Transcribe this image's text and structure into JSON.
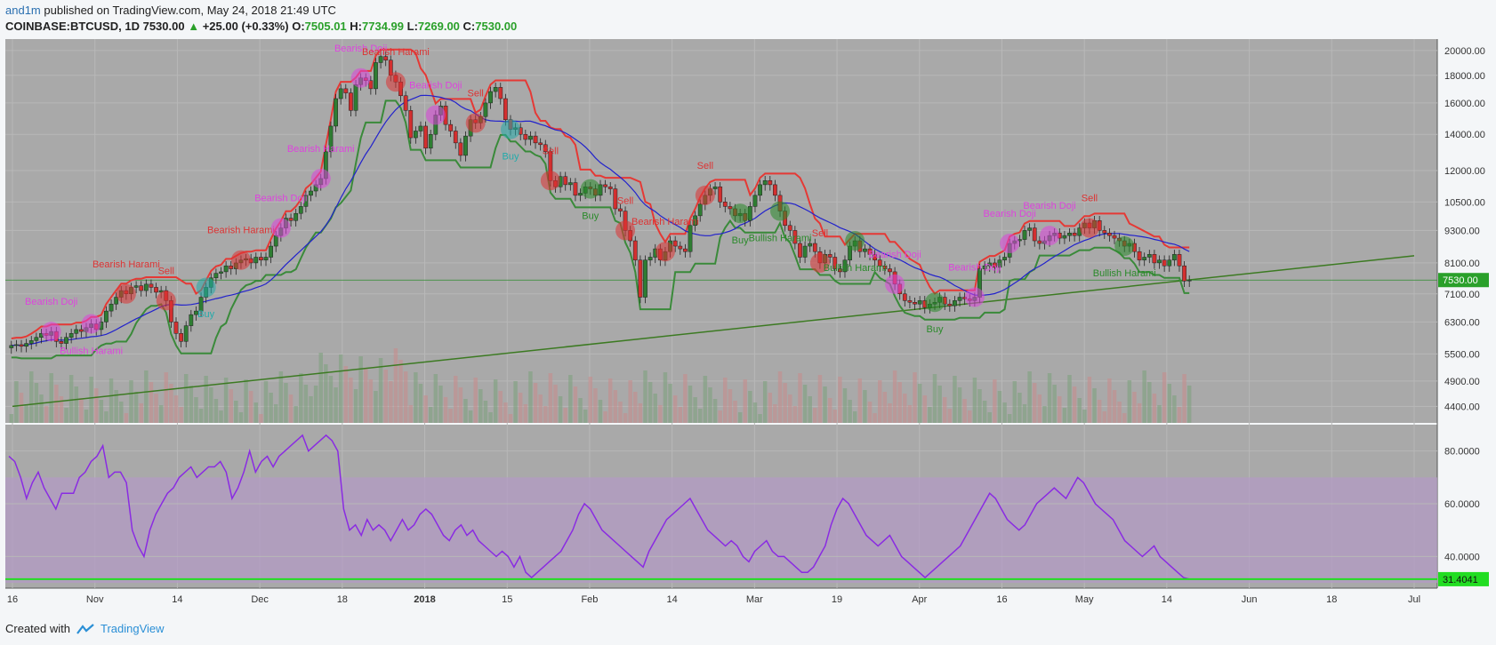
{
  "header": {
    "author": "and1m",
    "published": "published on TradingView.com, May 24, 2018 21:49 UTC",
    "symbol": "COINBASE:BTCUSD, 1D",
    "last": "7530.00",
    "change": "+25.00 (+0.33%)",
    "o_label": "O:",
    "o": "7505.01",
    "h_label": "H:",
    "h": "7734.99",
    "l_label": "L:",
    "l": "7269.00",
    "c_label": "C:",
    "c": "7530.00"
  },
  "footer": {
    "created": "Created with",
    "brand": "TradingView"
  },
  "colors": {
    "pane_bg": "#a9a9a9",
    "rsi_band": "#b39bc4",
    "up": "#2e7d32",
    "down": "#d32f2f",
    "ma": "#2222cc",
    "upper": "#e53935",
    "lower": "#3a8a3a",
    "trend": "#3c7a22",
    "rsi": "#8a2be2",
    "price_tag": "#2aa02a",
    "rsi_tag": "#22dd22"
  },
  "chart_data": [
    {
      "type": "candlestick",
      "title": "COINBASE:BTCUSD, 1D",
      "x_ticks": [
        "16",
        "Nov",
        "14",
        "Dec",
        "18",
        "2018",
        "15",
        "Feb",
        "14",
        "Mar",
        "19",
        "Apr",
        "16",
        "May",
        "14",
        "Jun",
        "18",
        "Jul"
      ],
      "y_ticks": [
        "20000.00",
        "18000.00",
        "16000.00",
        "14000.00",
        "12000.00",
        "10500.00",
        "9300.00",
        "8100.00",
        "7100.00",
        "6300.00",
        "5500.00",
        "4900.00",
        "4400.00"
      ],
      "y_scale": "log",
      "y_range": [
        4100,
        21000
      ],
      "last_price_tag": "7530.00",
      "closes": [
        5700,
        5720,
        5680,
        5750,
        5820,
        5900,
        6000,
        5950,
        6050,
        5800,
        5750,
        5900,
        6000,
        6100,
        6050,
        6150,
        6250,
        6100,
        6300,
        6600,
        6800,
        7000,
        7200,
        7100,
        7300,
        7350,
        7200,
        7400,
        7300,
        7150,
        7200,
        6900,
        6300,
        6000,
        5800,
        6200,
        6500,
        6600,
        7000,
        7300,
        7600,
        7750,
        7800,
        8000,
        7900,
        8100,
        8200,
        8250,
        8100,
        8300,
        8200,
        8300,
        8700,
        9100,
        9400,
        9800,
        9700,
        10000,
        10300,
        10800,
        11000,
        11300,
        11600,
        13000,
        14500,
        16300,
        17000,
        16700,
        15500,
        17300,
        17800,
        17600,
        17000,
        19000,
        19500,
        19200,
        18000,
        17500,
        16500,
        15500,
        13800,
        14200,
        14500,
        13200,
        14000,
        15200,
        15800,
        14600,
        14200,
        13500,
        12800,
        13900,
        14900,
        14700,
        15100,
        16000,
        16800,
        17100,
        16300,
        14900,
        14300,
        14400,
        14000,
        13700,
        13900,
        13500,
        13400,
        13000,
        11500,
        11200,
        11700,
        11300,
        11400,
        10800,
        10900,
        11200,
        11100,
        10800,
        11300,
        11200,
        11100,
        10200,
        10100,
        9300,
        8900,
        8200,
        7000,
        8200,
        8300,
        8600,
        8200,
        8500,
        8900,
        8700,
        8600,
        8500,
        9500,
        9900,
        10400,
        10800,
        11100,
        11200,
        10500,
        10300,
        10200,
        9900,
        10000,
        9700,
        10300,
        10800,
        11300,
        11500,
        11300,
        10800,
        10100,
        9500,
        9300,
        8800,
        8300,
        8700,
        8800,
        8500,
        8100,
        8400,
        8300,
        7900,
        7800,
        8200,
        8700,
        8900,
        8500,
        8600,
        8400,
        8200,
        8000,
        7900,
        7800,
        7400,
        7100,
        6900,
        6850,
        6800,
        6900,
        6700,
        6800,
        6850,
        7000,
        6800,
        6750,
        6900,
        7000,
        6950,
        6900,
        7000,
        7900,
        8000,
        8100,
        7950,
        8200,
        8300,
        8800,
        8900,
        8950,
        9300,
        9400,
        8900,
        8800,
        8900,
        9100,
        9200,
        9000,
        9100,
        9200,
        9100,
        9400,
        9600,
        9400,
        9700,
        9300,
        9200,
        9100,
        9000,
        8900,
        8700,
        8800,
        8500,
        8200,
        8300,
        8400,
        8100,
        8200,
        8000,
        8200,
        8400,
        8000,
        7500,
        7530
      ],
      "upper_band": "red stop line (resistance)",
      "lower_band": "green stop line (support)",
      "series": [
        {
          "name": "",
          "kind": "ma",
          "color": "#2222cc"
        }
      ],
      "trendline": {
        "from": [
          "16",
          4400
        ],
        "to": [
          "Jul",
          8350
        ]
      },
      "annotations": [
        {
          "text": "Bearish Doji",
          "color": "#dd44dd"
        },
        {
          "text": "Bullish Harami",
          "color": "#dd44dd"
        },
        {
          "text": "Bearish Harami",
          "color": "#d33"
        },
        {
          "text": "Sell",
          "color": "#d33"
        },
        {
          "text": "Buy",
          "color": "#2aa"
        },
        {
          "text": "Bearish Harami",
          "color": "#d33"
        },
        {
          "text": "Bearish Doji",
          "color": "#dd44dd"
        },
        {
          "text": "Bearish Harami",
          "color": "#dd44dd"
        },
        {
          "text": "Bearish Doji",
          "color": "#dd44dd"
        },
        {
          "text": "Bearish Harami",
          "color": "#d33"
        },
        {
          "text": "Bearish Doji",
          "color": "#dd44dd"
        },
        {
          "text": "Sell",
          "color": "#d33"
        },
        {
          "text": "Buy",
          "color": "#2aa"
        },
        {
          "text": "Sell",
          "color": "#d33"
        },
        {
          "text": "Buy",
          "color": "#2a8a2a"
        },
        {
          "text": "Sell",
          "color": "#d33"
        },
        {
          "text": "Bearish Harami",
          "color": "#d33"
        },
        {
          "text": "Sell",
          "color": "#d33"
        },
        {
          "text": "Buy",
          "color": "#2a8a2a"
        },
        {
          "text": "Bullish Harami",
          "color": "#2a8a2a"
        },
        {
          "text": "Sell",
          "color": "#d33"
        },
        {
          "text": "Bullish Harami",
          "color": "#2a8a2a"
        },
        {
          "text": "Bearish Doji",
          "color": "#dd44dd"
        },
        {
          "text": "Buy",
          "color": "#2a8a2a"
        },
        {
          "text": "Bearish Doji",
          "color": "#dd44dd"
        },
        {
          "text": "Bearish Doji",
          "color": "#dd44dd"
        },
        {
          "text": "Bearish Doji",
          "color": "#dd44dd"
        },
        {
          "text": "Sell",
          "color": "#d33"
        },
        {
          "text": "Bullish Harami",
          "color": "#2a8a2a"
        }
      ]
    },
    {
      "type": "line",
      "title": "RSI",
      "y_ticks": [
        "80.0000",
        "60.0000",
        "40.0000"
      ],
      "y_range": [
        28,
        90
      ],
      "band": [
        30,
        70
      ],
      "last_value_tag": "31.4041",
      "values": [
        78,
        76,
        70,
        62,
        68,
        72,
        66,
        62,
        58,
        64,
        64,
        64,
        70,
        72,
        76,
        78,
        82,
        70,
        72,
        72,
        68,
        50,
        44,
        40,
        50,
        56,
        60,
        64,
        66,
        70,
        72,
        74,
        70,
        72,
        74,
        74,
        76,
        72,
        62,
        66,
        72,
        80,
        72,
        76,
        78,
        74,
        78,
        80,
        82,
        84,
        86,
        80,
        82,
        84,
        86,
        84,
        80,
        58,
        50,
        52,
        48,
        54,
        50,
        52,
        50,
        46,
        50,
        54,
        50,
        52,
        56,
        58,
        56,
        52,
        48,
        46,
        50,
        52,
        48,
        50,
        46,
        44,
        42,
        40,
        42,
        40,
        36,
        40,
        34,
        32,
        34,
        36,
        38,
        40,
        42,
        46,
        50,
        56,
        60,
        58,
        54,
        50,
        48,
        46,
        44,
        42,
        40,
        38,
        36,
        42,
        46,
        50,
        54,
        56,
        58,
        60,
        62,
        58,
        54,
        50,
        48,
        46,
        44,
        46,
        44,
        40,
        38,
        42,
        44,
        46,
        42,
        40,
        40,
        38,
        36,
        34,
        34,
        36,
        40,
        44,
        52,
        58,
        62,
        60,
        56,
        52,
        48,
        46,
        44,
        46,
        48,
        44,
        40,
        38,
        36,
        34,
        32,
        34,
        36,
        38,
        40,
        42,
        44,
        48,
        52,
        56,
        60,
        64,
        62,
        58,
        54,
        52,
        50,
        52,
        56,
        60,
        62,
        64,
        66,
        64,
        62,
        66,
        70,
        68,
        64,
        60,
        58,
        56,
        54,
        50,
        46,
        44,
        42,
        40,
        42,
        44,
        40,
        38,
        36,
        34,
        32,
        31.4
      ]
    }
  ]
}
